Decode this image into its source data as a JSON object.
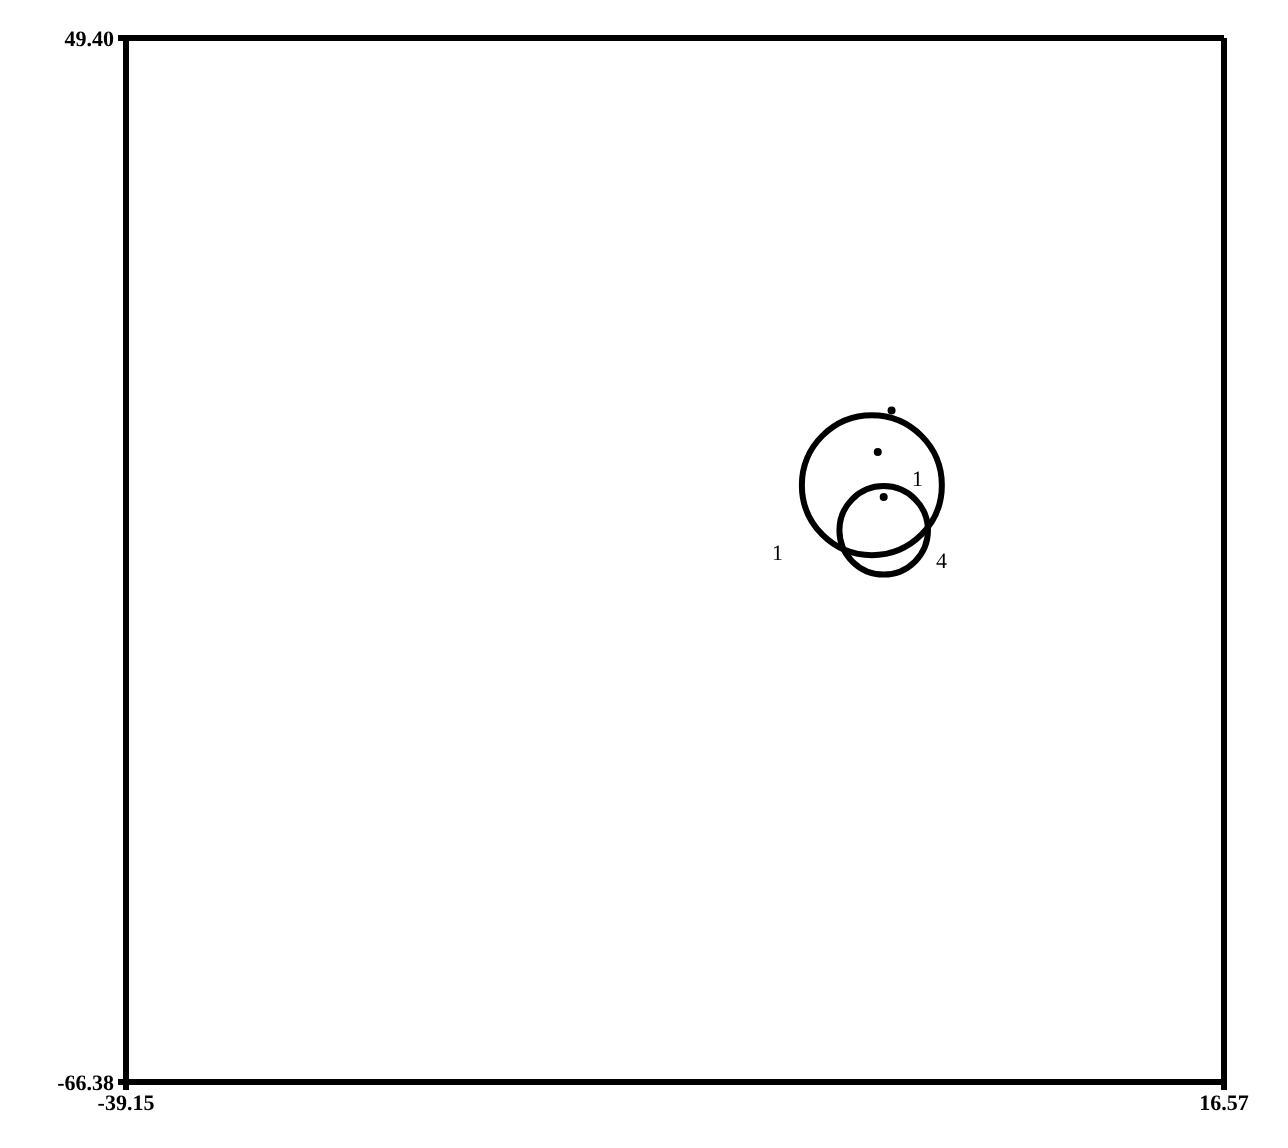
{
  "chart_data": {
    "type": "scatter",
    "xlim": [
      -39.15,
      16.57
    ],
    "ylim": [
      -66.38,
      49.4
    ],
    "xticks": [
      -39.15,
      16.57
    ],
    "yticks": [
      {
        "value": -66.38,
        "label": "-66.38"
      },
      {
        "value": 49.4,
        "label": "49.40"
      }
    ],
    "marker": "circle",
    "series": [
      {
        "type": "bubble",
        "color": "#000000",
        "x": [
          -1.3,
          -0.7
        ],
        "values": [
          -0.2,
          -5.2
        ],
        "sizes": [
          1,
          0.4
        ]
      },
      {
        "color": "#000000",
        "x": [
          -0.3,
          -1.0,
          -0.7
        ],
        "values": [
          8.1,
          3.5,
          -1.5
        ]
      }
    ],
    "annotations": [
      "1",
      "1",
      "4"
    ]
  }
}
